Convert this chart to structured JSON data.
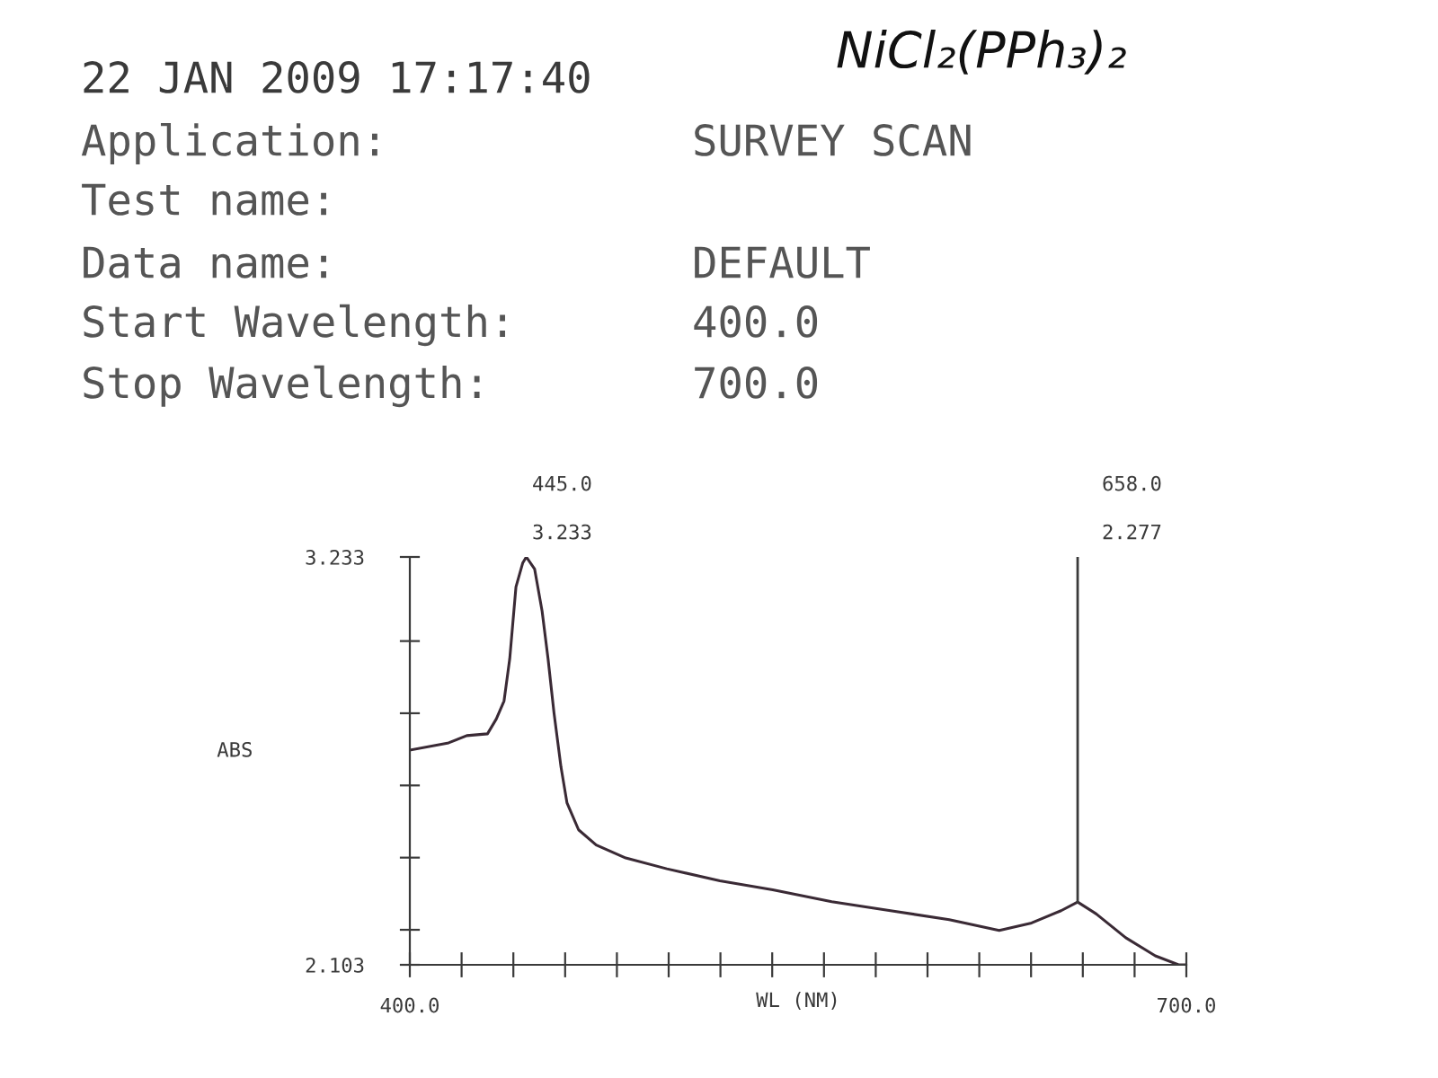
{
  "chart_data": {
    "type": "line",
    "title": "22 JAN 2009 17:17:40",
    "xlabel": "WL (NM)",
    "ylabel": "ABS",
    "x": [
      400,
      415,
      422,
      430,
      433.4,
      436.4,
      438.6,
      441,
      443.6,
      445,
      448.2,
      451.1,
      453.4,
      455.7,
      458.4,
      460.7,
      465.2,
      472,
      483.4,
      499.3,
      519.8,
      540.2,
      563,
      585.7,
      608.4,
      627.7,
      640.2,
      651.6,
      658,
      665.2,
      676.6,
      688,
      697,
      700
    ],
    "series": [
      {
        "color": "#3a2a35",
        "values": [
          2.698,
          2.718,
          2.738,
          2.743,
          2.784,
          2.834,
          2.951,
          3.15,
          3.216,
          3.233,
          3.2,
          3.083,
          2.951,
          2.801,
          2.651,
          2.552,
          2.477,
          2.435,
          2.399,
          2.369,
          2.336,
          2.311,
          2.278,
          2.253,
          2.228,
          2.198,
          2.219,
          2.253,
          2.277,
          2.244,
          2.178,
          2.128,
          2.103,
          2.103
        ]
      }
    ],
    "xlim": [
      400,
      700
    ],
    "xticks": [
      {
        "value": 400,
        "label": "400.0"
      },
      {
        "value": 420,
        "label": null
      },
      {
        "value": 440,
        "label": null
      },
      {
        "value": 460,
        "label": null
      },
      {
        "value": 480,
        "label": null
      },
      {
        "value": 500,
        "label": null
      },
      {
        "value": 520,
        "label": null
      },
      {
        "value": 540,
        "label": null
      },
      {
        "value": 560,
        "label": null
      },
      {
        "value": 580,
        "label": null
      },
      {
        "value": 600,
        "label": null
      },
      {
        "value": 620,
        "label": null
      },
      {
        "value": 640,
        "label": null
      },
      {
        "value": 660,
        "label": null
      },
      {
        "value": 680,
        "label": null
      },
      {
        "value": 700,
        "label": "700.0"
      }
    ],
    "ylim": [
      2.103,
      3.233
    ],
    "yticks": [
      {
        "value": 2.103,
        "label": "2.103"
      },
      {
        "value": 2.2,
        "label": null
      },
      {
        "value": 2.4,
        "label": null
      },
      {
        "value": 2.6,
        "label": null
      },
      {
        "value": 2.8,
        "label": null
      },
      {
        "value": 3.0,
        "label": null
      },
      {
        "value": 3.233,
        "label": "3.233"
      }
    ],
    "ref_lines": [
      {
        "axis": "x",
        "value": 658,
        "label": null
      }
    ],
    "annotations": [
      "445.0",
      "3.233",
      "658.0",
      "2.277",
      "Application:",
      "SURVEY SCAN",
      "Test name:",
      "Data name:",
      "DEFAULT",
      "Start Wavelength:",
      "400.0",
      "Stop Wavelength:",
      "700.0",
      "NiCl₂(PPh₃)₂"
    ],
    "grid": false,
    "line_style": "solid"
  }
}
